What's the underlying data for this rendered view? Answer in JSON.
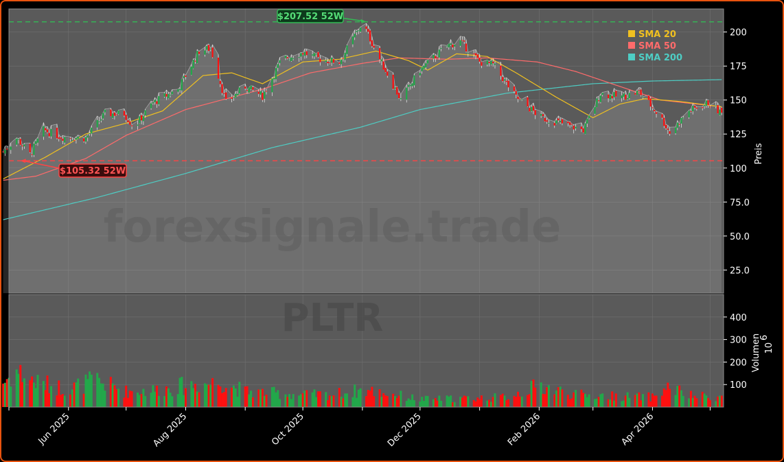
{
  "chart_data": {
    "type": "candlestick",
    "ticker_watermark": "PLTR",
    "site_watermark": "forexsignale.trade",
    "colors": {
      "background": "#000000",
      "panel": "#5a5a5a",
      "grid": "#707070",
      "border": "#e8530e",
      "up": "#22a84a",
      "down": "#ff1010",
      "sma20": "#f0c020",
      "sma50": "#ff6b6b",
      "sma200": "#4ecdc4",
      "high_line": "#33bb55",
      "low_line": "#ff4444"
    },
    "price_axis": {
      "label": "Preis",
      "ylim": [
        8,
        217
      ],
      "ticks": [
        25,
        50,
        75,
        100,
        125,
        150,
        175,
        200
      ],
      "tick_labels": [
        "25.0",
        "50.0",
        "75.0",
        "100",
        "125",
        "150",
        "175",
        "200"
      ]
    },
    "volume_axis": {
      "label": "Volumen",
      "unit": "10",
      "unit_exp": "6",
      "ylim": [
        0,
        500
      ],
      "ticks": [
        100,
        200,
        300,
        400
      ],
      "tick_labels": [
        "100",
        "200",
        "300",
        "400"
      ]
    },
    "x_axis": {
      "start": "2025-05-01",
      "end": "2026-05-08",
      "ticks": [
        "2025-05-01",
        "2025-06-01",
        "2025-07-01",
        "2025-08-01",
        "2025-09-01",
        "2025-10-01",
        "2025-11-01",
        "2025-12-01",
        "2026-01-01",
        "2026-02-01",
        "2026-03-01",
        "2026-04-01",
        "2026-05-01"
      ],
      "labeled": [
        {
          "date": "2025-06-01",
          "label": "Jun 2025"
        },
        {
          "date": "2025-08-01",
          "label": "Aug 2025"
        },
        {
          "date": "2025-10-01",
          "label": "Oct 2025"
        },
        {
          "date": "2025-12-01",
          "label": "Dec 2025"
        },
        {
          "date": "2026-02-01",
          "label": "Feb 2026"
        },
        {
          "date": "2026-04-01",
          "label": "Apr 2026"
        }
      ]
    },
    "high_52w": {
      "value": 207.52,
      "label": "$207.52 52W",
      "date": "2025-11-03"
    },
    "low_52w": {
      "value": 105.32,
      "label": "$105.32 52W",
      "date": "2025-05-07"
    },
    "legend": [
      {
        "key": "sma20",
        "label": "SMA 20"
      },
      {
        "key": "sma50",
        "label": "SMA 50"
      },
      {
        "key": "sma200",
        "label": "SMA 200"
      }
    ],
    "price_anchors": [
      [
        "2025-04-28",
        112
      ],
      [
        "2025-05-05",
        122
      ],
      [
        "2025-05-12",
        110
      ],
      [
        "2025-05-19",
        128
      ],
      [
        "2025-05-28",
        123
      ],
      [
        "2025-06-10",
        122
      ],
      [
        "2025-06-20",
        140
      ],
      [
        "2025-06-30",
        140
      ],
      [
        "2025-07-05",
        130
      ],
      [
        "2025-07-15",
        148
      ],
      [
        "2025-07-28",
        158
      ],
      [
        "2025-08-08",
        186
      ],
      [
        "2025-08-14",
        188
      ],
      [
        "2025-08-22",
        148
      ],
      [
        "2025-09-01",
        160
      ],
      [
        "2025-09-10",
        153
      ],
      [
        "2025-09-20",
        180
      ],
      [
        "2025-10-01",
        185
      ],
      [
        "2025-10-10",
        180
      ],
      [
        "2025-10-20",
        178
      ],
      [
        "2025-11-01",
        207
      ],
      [
        "2025-11-10",
        180
      ],
      [
        "2025-11-21",
        150
      ],
      [
        "2025-12-01",
        172
      ],
      [
        "2025-12-15",
        190
      ],
      [
        "2025-12-22",
        193
      ],
      [
        "2026-01-01",
        178
      ],
      [
        "2026-01-08",
        176
      ],
      [
        "2026-01-20",
        152
      ],
      [
        "2026-02-02",
        137
      ],
      [
        "2026-02-12",
        133
      ],
      [
        "2026-02-24",
        128
      ],
      [
        "2026-03-05",
        155
      ],
      [
        "2026-03-15",
        152
      ],
      [
        "2026-03-25",
        156
      ],
      [
        "2026-04-05",
        138
      ],
      [
        "2026-04-10",
        126
      ],
      [
        "2026-04-20",
        142
      ],
      [
        "2026-04-30",
        148
      ],
      [
        "2026-05-07",
        140
      ]
    ],
    "sma20_anchors": [
      [
        "2025-04-28",
        92
      ],
      [
        "2025-05-20",
        108
      ],
      [
        "2025-06-10",
        125
      ],
      [
        "2025-07-01",
        133
      ],
      [
        "2025-07-20",
        142
      ],
      [
        "2025-08-10",
        168
      ],
      [
        "2025-08-25",
        170
      ],
      [
        "2025-09-10",
        162
      ],
      [
        "2025-10-01",
        178
      ],
      [
        "2025-10-20",
        180
      ],
      [
        "2025-11-08",
        186
      ],
      [
        "2025-11-25",
        179
      ],
      [
        "2025-12-05",
        172
      ],
      [
        "2025-12-20",
        184
      ],
      [
        "2026-01-05",
        182
      ],
      [
        "2026-01-20",
        170
      ],
      [
        "2026-02-10",
        152
      ],
      [
        "2026-03-01",
        137
      ],
      [
        "2026-03-15",
        147
      ],
      [
        "2026-03-28",
        151
      ],
      [
        "2026-04-15",
        149
      ],
      [
        "2026-05-07",
        145
      ]
    ],
    "sma50_anchors": [
      [
        "2025-04-28",
        91
      ],
      [
        "2025-05-15",
        94
      ],
      [
        "2025-06-10",
        107
      ],
      [
        "2025-07-01",
        124
      ],
      [
        "2025-08-01",
        143
      ],
      [
        "2025-08-25",
        152
      ],
      [
        "2025-09-10",
        158
      ],
      [
        "2025-10-05",
        170
      ],
      [
        "2025-11-01",
        177
      ],
      [
        "2025-11-20",
        181
      ],
      [
        "2025-12-15",
        180
      ],
      [
        "2026-01-05",
        181
      ],
      [
        "2026-01-31",
        178
      ],
      [
        "2026-02-20",
        171
      ],
      [
        "2026-03-15",
        160
      ],
      [
        "2026-04-05",
        150
      ],
      [
        "2026-05-07",
        145
      ]
    ],
    "sma200_anchors": [
      [
        "2025-04-28",
        62
      ],
      [
        "2025-06-15",
        78
      ],
      [
        "2025-08-01",
        96
      ],
      [
        "2025-09-15",
        115
      ],
      [
        "2025-10-31",
        130
      ],
      [
        "2025-12-01",
        143
      ],
      [
        "2026-01-15",
        155
      ],
      [
        "2026-03-01",
        162
      ],
      [
        "2026-04-01",
        164
      ],
      [
        "2026-05-07",
        165
      ]
    ],
    "volume_profile": [
      [
        "2025-04-28",
        110
      ],
      [
        "2025-05-05",
        160
      ],
      [
        "2025-05-15",
        110
      ],
      [
        "2025-06-01",
        80
      ],
      [
        "2025-06-15",
        120
      ],
      [
        "2025-07-01",
        70
      ],
      [
        "2025-07-15",
        75
      ],
      [
        "2025-08-05",
        100
      ],
      [
        "2025-08-20",
        110
      ],
      [
        "2025-09-01",
        70
      ],
      [
        "2025-10-01",
        55
      ],
      [
        "2025-10-15",
        55
      ],
      [
        "2025-11-01",
        75
      ],
      [
        "2025-11-15",
        60
      ],
      [
        "2025-12-01",
        35
      ],
      [
        "2026-01-01",
        40
      ],
      [
        "2026-01-15",
        45
      ],
      [
        "2026-02-01",
        95
      ],
      [
        "2026-02-20",
        55
      ],
      [
        "2026-03-15",
        48
      ],
      [
        "2026-04-01",
        45
      ],
      [
        "2026-04-10",
        90
      ],
      [
        "2026-04-20",
        50
      ],
      [
        "2026-05-07",
        45
      ]
    ]
  }
}
